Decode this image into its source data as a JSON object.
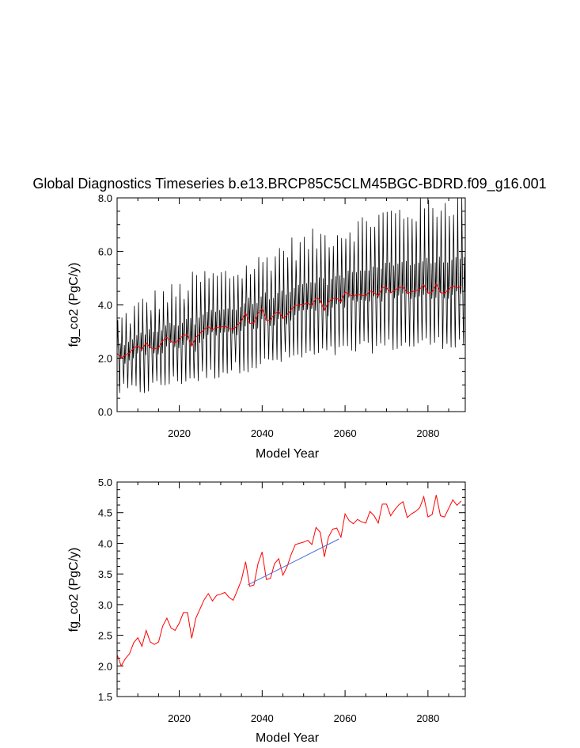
{
  "title": "Global Diagnostics Timeseries b.e13.BRCP85C5CLM45BGC-BDRD.f09_g16.001",
  "chart_data": [
    {
      "type": "line",
      "panel": "monthly",
      "xlabel": "Model Year",
      "ylabel": "fg_co2 (PgC/y)",
      "xlim": [
        2005,
        2089
      ],
      "ylim": [
        0,
        8
      ],
      "xticks": [
        "2020",
        "2040",
        "2060",
        "2080"
      ],
      "yticks": [
        "0.0",
        "2.0",
        "4.0",
        "6.0",
        "8.0"
      ],
      "colors": {
        "monthly": "#000000",
        "annual": "#ff0000"
      },
      "monthly": {
        "description": "monthly series oscillating seasonally around annual mean",
        "years": [
          2005,
          2010,
          2015,
          2020,
          2025,
          2030,
          2035,
          2040,
          2045,
          2050,
          2055,
          2060,
          2065,
          2070,
          2075,
          2080,
          2085,
          2089
        ],
        "min": [
          0.8,
          0.8,
          1.0,
          1.2,
          1.3,
          1.5,
          1.7,
          1.8,
          2.0,
          2.1,
          2.2,
          2.3,
          2.4,
          2.5,
          2.5,
          2.6,
          2.6,
          2.6
        ],
        "max": [
          3.2,
          3.8,
          4.2,
          4.4,
          4.9,
          5.0,
          5.2,
          5.5,
          6.0,
          6.2,
          6.5,
          6.7,
          7.0,
          7.3,
          7.4,
          7.6,
          7.7,
          7.8
        ]
      }
    },
    {
      "type": "line",
      "panel": "annual",
      "xlabel": "Model Year",
      "ylabel": "fg_co2 (PgC/y)",
      "xlim": [
        2005,
        2089
      ],
      "ylim": [
        1.5,
        5.0
      ],
      "xticks": [
        "2020",
        "2040",
        "2060",
        "2080"
      ],
      "yticks": [
        "1.5",
        "2.0",
        "2.5",
        "3.0",
        "3.5",
        "4.0",
        "4.5",
        "5.0"
      ],
      "colors": {
        "annual": "#ff0000",
        "trend": "#4a6fe0"
      },
      "series": [
        {
          "name": "annual mean",
          "x0": 2005,
          "values": [
            2.18,
            2.0,
            2.12,
            2.2,
            2.38,
            2.46,
            2.32,
            2.58,
            2.39,
            2.35,
            2.39,
            2.65,
            2.78,
            2.62,
            2.58,
            2.7,
            2.87,
            2.87,
            2.45,
            2.78,
            2.93,
            3.08,
            3.18,
            3.06,
            3.15,
            3.17,
            3.2,
            3.12,
            3.07,
            3.23,
            3.4,
            3.7,
            3.3,
            3.32,
            3.67,
            3.86,
            3.41,
            3.43,
            3.67,
            3.75,
            3.48,
            3.62,
            3.82,
            3.98,
            4.0,
            4.02,
            4.05,
            3.98,
            4.26,
            4.18,
            3.78,
            4.1,
            4.23,
            4.25,
            4.1,
            4.48,
            4.37,
            4.32,
            4.39,
            4.35,
            4.33,
            4.52,
            4.45,
            4.33,
            4.64,
            4.64,
            4.45,
            4.55,
            4.63,
            4.68,
            4.42,
            4.48,
            4.52,
            4.58,
            4.76,
            4.43,
            4.47,
            4.79,
            4.45,
            4.43,
            4.57,
            4.71,
            4.62,
            4.69
          ]
        },
        {
          "name": "trend",
          "x": [
            2036.5,
            2058.5
          ],
          "values": [
            3.32,
            4.07
          ]
        }
      ]
    }
  ]
}
